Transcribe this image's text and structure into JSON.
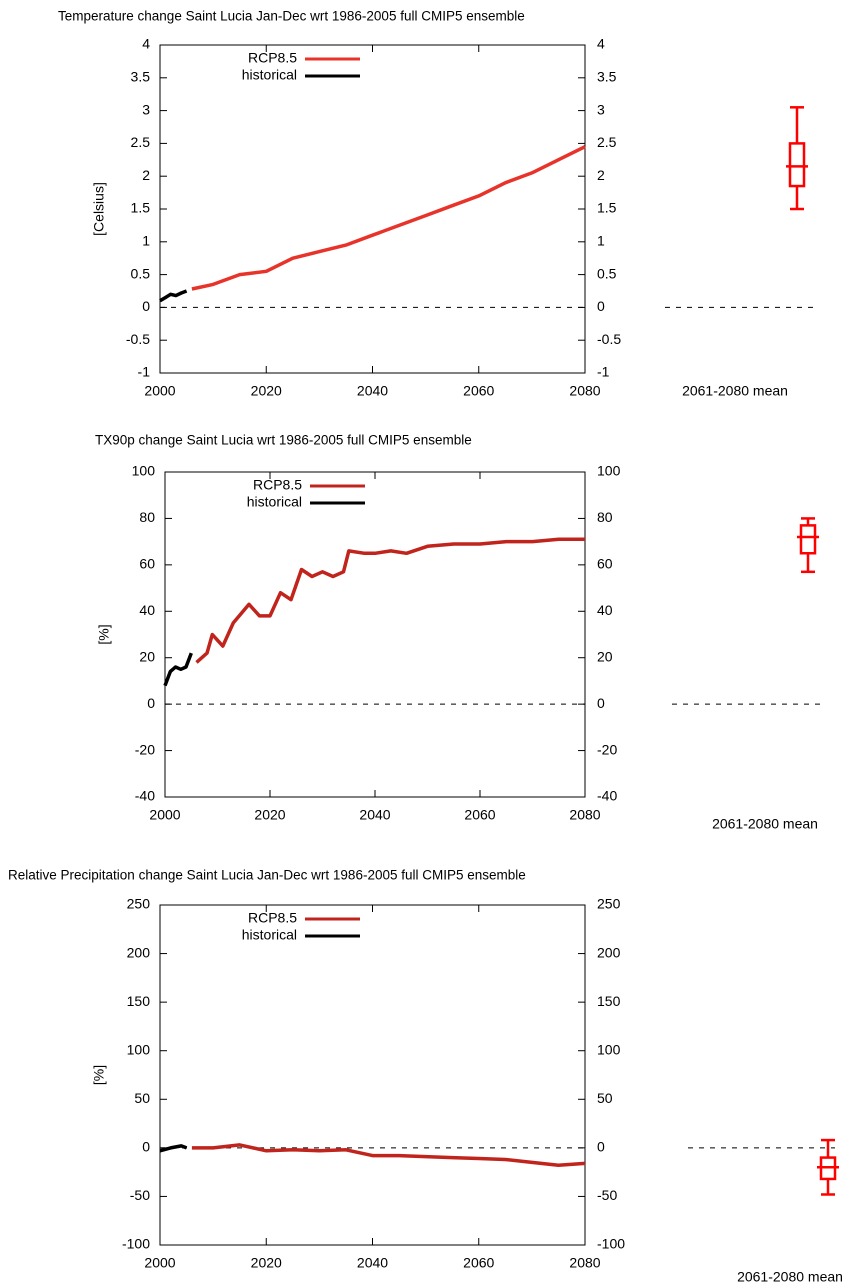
{
  "chart_data": [
    {
      "type": "line",
      "title": "Temperature change Saint Lucia Jan-Dec wrt 1986-2005 full CMIP5 ensemble",
      "y_label": "[Celsius]",
      "xlim": [
        2000,
        2080
      ],
      "xticks": [
        2000,
        2020,
        2040,
        2060,
        2080
      ],
      "ylim": [
        -1,
        4
      ],
      "yticks": [
        -1,
        -0.5,
        0,
        0.5,
        1,
        1.5,
        2,
        2.5,
        3,
        3.5,
        4
      ],
      "grid": false,
      "legend": "upper left",
      "reference_line": 0,
      "series": [
        {
          "name": "RCP8.5",
          "color": "#e8332a",
          "x": [
            2006,
            2010,
            2015,
            2020,
            2025,
            2030,
            2035,
            2040,
            2045,
            2050,
            2055,
            2060,
            2065,
            2070,
            2075,
            2080
          ],
          "values": [
            0.28,
            0.35,
            0.5,
            0.55,
            0.75,
            0.85,
            0.95,
            1.1,
            1.25,
            1.4,
            1.55,
            1.7,
            1.9,
            2.05,
            2.25,
            2.45
          ]
        },
        {
          "name": "historical",
          "color": "#000000",
          "x": [
            2000,
            2001,
            2002,
            2003,
            2004,
            2005
          ],
          "values": [
            0.1,
            0.15,
            0.2,
            0.18,
            0.22,
            0.25
          ]
        }
      ],
      "box": {
        "label": "2061-2080 mean",
        "color": "#ff0000",
        "whisker_low": 1.5,
        "q1": 1.85,
        "median": 2.15,
        "q3": 2.5,
        "whisker_high": 3.05
      }
    },
    {
      "type": "line",
      "title": "TX90p change Saint Lucia wrt 1986-2005 full CMIP5 ensemble",
      "y_label": "[%]",
      "xlim": [
        2000,
        2080
      ],
      "xticks": [
        2000,
        2020,
        2040,
        2060,
        2080
      ],
      "ylim": [
        -40,
        100
      ],
      "yticks": [
        -40,
        -20,
        0,
        20,
        40,
        60,
        80,
        100
      ],
      "grid": false,
      "legend": "upper left",
      "reference_line": 0,
      "series": [
        {
          "name": "RCP8.5",
          "color": "#c0241c",
          "x": [
            2006,
            2008,
            2009,
            2011,
            2013,
            2016,
            2018,
            2020,
            2022,
            2024,
            2026,
            2028,
            2030,
            2032,
            2034,
            2035,
            2038,
            2040,
            2043,
            2046,
            2050,
            2055,
            2060,
            2065,
            2070,
            2075,
            2080
          ],
          "values": [
            18,
            22,
            30,
            25,
            35,
            43,
            38,
            38,
            48,
            45,
            58,
            55,
            57,
            55,
            57,
            66,
            65,
            65,
            66,
            65,
            68,
            69,
            69,
            70,
            70,
            71,
            71
          ]
        },
        {
          "name": "historical",
          "color": "#000000",
          "x": [
            2000,
            2001,
            2002,
            2003,
            2004,
            2005
          ],
          "values": [
            8,
            14,
            16,
            15,
            16,
            22
          ]
        }
      ],
      "box": {
        "label": "2061-2080 mean",
        "color": "#ff0000",
        "whisker_low": 57,
        "q1": 65,
        "median": 72,
        "q3": 77,
        "whisker_high": 80
      }
    },
    {
      "type": "line",
      "title": "Relative Precipitation change Saint Lucia Jan-Dec wrt 1986-2005 full CMIP5 ensemble",
      "y_label": "[%]",
      "xlim": [
        2000,
        2080
      ],
      "xticks": [
        2000,
        2020,
        2040,
        2060,
        2080
      ],
      "ylim": [
        -100,
        250
      ],
      "yticks": [
        -100,
        -50,
        0,
        50,
        100,
        150,
        200,
        250
      ],
      "grid": false,
      "legend": "upper left",
      "reference_line": 0,
      "series": [
        {
          "name": "RCP8.5",
          "color": "#c0241c",
          "x": [
            2006,
            2010,
            2015,
            2020,
            2025,
            2030,
            2035,
            2040,
            2045,
            2050,
            2055,
            2060,
            2065,
            2070,
            2075,
            2080
          ],
          "values": [
            0,
            0,
            3,
            -3,
            -2,
            -3,
            -2,
            -8,
            -8,
            -9,
            -10,
            -11,
            -12,
            -15,
            -18,
            -16
          ]
        },
        {
          "name": "historical",
          "color": "#000000",
          "x": [
            2000,
            2002,
            2004,
            2005
          ],
          "values": [
            -3,
            0,
            2,
            0
          ]
        }
      ],
      "box": {
        "label": "2061-2080 mean",
        "color": "#ff0000",
        "whisker_low": -48,
        "q1": -32,
        "median": -20,
        "q3": -10,
        "whisker_high": 8
      }
    }
  ]
}
